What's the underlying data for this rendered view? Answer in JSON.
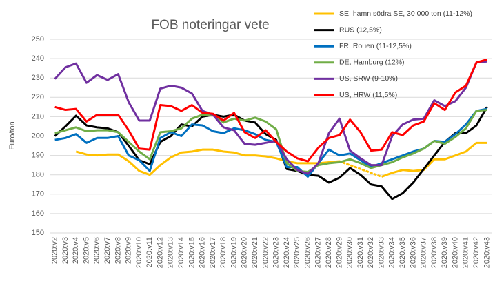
{
  "chart_data": {
    "type": "line",
    "title": "FOB noteringar vete",
    "y_label": "Euro/ton",
    "categories": [
      "2020:v2",
      "2020:v3",
      "2020:v4",
      "2020:v5",
      "2020:v6",
      "2020:v7",
      "2020:v8",
      "2020:v9",
      "2020:v10",
      "2020:v11",
      "2020:v12",
      "2020:v13",
      "2020:v14",
      "2020:v15",
      "2020:v16",
      "2020:v17",
      "2020:v18",
      "2020:v19",
      "2020:v20",
      "2020:v21",
      "2020:v22",
      "2020:v23",
      "2020:v24",
      "2020:v25",
      "2020:v26",
      "2020:v27",
      "2020:v28",
      "2020:v29",
      "2020:v30",
      "2020:v31",
      "2020:v32",
      "2020:v33",
      "2020:v34",
      "2020:v35",
      "2020:v36",
      "2020:v37",
      "2020:v38",
      "2020:v39",
      "2020:v40",
      "2020:v41",
      "2020:v42",
      "2020:v43"
    ],
    "ylim": [
      150,
      250
    ],
    "yticks": [
      150,
      160,
      170,
      180,
      190,
      200,
      210,
      220,
      230,
      240,
      250
    ],
    "grid": true,
    "legend": "top-right",
    "series": [
      {
        "name": "SE, hamn södra SE, 30 000 ton (11-12%)",
        "color": "#ffc000",
        "gap_line": "dotted",
        "values": [
          null,
          null,
          192,
          190.5,
          190,
          190.5,
          190.5,
          187,
          182,
          180,
          185,
          189,
          191.5,
          192,
          193,
          193,
          192,
          191.5,
          190,
          190,
          189.5,
          188.5,
          187,
          186,
          186,
          186,
          186.5,
          187,
          null,
          null,
          null,
          179,
          181,
          182.5,
          182,
          182.5,
          188,
          188,
          190,
          192,
          196.5,
          196.5
        ]
      },
      {
        "name": "RUS (12,5%)",
        "color": "#000000",
        "values": [
          200,
          205,
          210.5,
          205.5,
          204.5,
          204,
          202,
          195,
          187.5,
          185.5,
          197,
          200,
          206,
          205,
          210,
          211,
          210,
          211,
          208,
          207,
          201,
          198,
          183,
          182,
          180,
          179.5,
          176,
          178.5,
          183.5,
          180,
          175,
          174,
          167.5,
          170.5,
          176,
          183,
          190,
          197,
          201.5,
          201.5,
          205.5,
          215
        ]
      },
      {
        "name": "FR, Rouen (11-12,5%)",
        "color": "#0070c0",
        "values": [
          198,
          199,
          201,
          196.5,
          199,
          199,
          200,
          190,
          187.5,
          182,
          199,
          202,
          200,
          206,
          205.5,
          202.5,
          201.5,
          204,
          203,
          201,
          198,
          197,
          184,
          184,
          179,
          186,
          193,
          190,
          191,
          187.5,
          184,
          186,
          188,
          190,
          192,
          193.5,
          197.5,
          197,
          201,
          206,
          213,
          214
        ]
      },
      {
        "name": "DE, Hamburg (12%)",
        "color": "#70ad47",
        "values": [
          201.5,
          203,
          204.5,
          202.5,
          203,
          203,
          202,
          197,
          192,
          188,
          202,
          202.5,
          204,
          209,
          211,
          211,
          207,
          209,
          208,
          209.5,
          207.5,
          203.5,
          186,
          182,
          181.5,
          185,
          186,
          186.5,
          188,
          186,
          183.5,
          185,
          186.5,
          189,
          191,
          193.5,
          197.5,
          196,
          199.5,
          204,
          213,
          213.5
        ]
      },
      {
        "name": "US, SRW (9-10%)",
        "color": "#7030a0",
        "values": [
          229.5,
          235.5,
          237.5,
          227.5,
          231.5,
          229,
          232,
          217.5,
          208,
          208,
          224.5,
          226,
          225,
          222,
          213,
          211,
          204.5,
          203,
          196,
          195.5,
          196.5,
          197.5,
          188,
          182.5,
          180.5,
          186,
          201.5,
          209,
          192.5,
          188.5,
          185,
          185,
          200,
          206,
          208.5,
          209,
          218.5,
          215.5,
          218,
          225,
          238,
          238.5
        ]
      },
      {
        "name": "US, HRW (11,5%)",
        "color": "#ff0000",
        "values": [
          215,
          213.5,
          214,
          207.5,
          211,
          211,
          211,
          203,
          193.5,
          193,
          216,
          215.5,
          213,
          216,
          212,
          211.5,
          208,
          212,
          202,
          199,
          203,
          197,
          192,
          188.5,
          187,
          194,
          199,
          200.5,
          208.5,
          202,
          192.5,
          193,
          202,
          200.5,
          205.5,
          207.5,
          217,
          213.5,
          222.5,
          226,
          238,
          239.5
        ]
      }
    ]
  }
}
